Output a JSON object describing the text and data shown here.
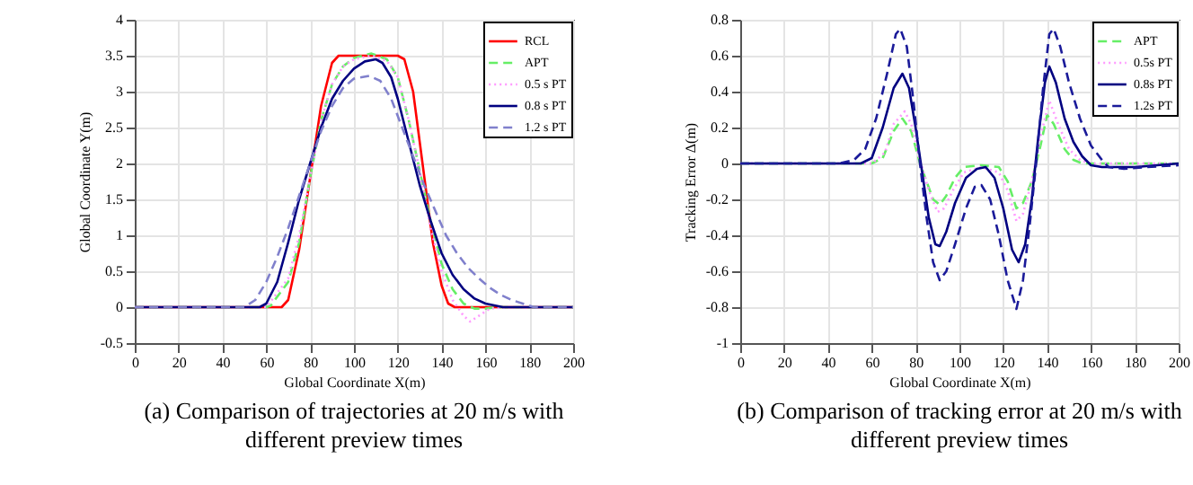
{
  "chart_data": [
    {
      "type": "line",
      "title": "(a) Comparison of trajectories at 20 m/s with different preview times",
      "xlabel": "Global Coordinate X(m)",
      "ylabel": "Global Coordinate Y(m)",
      "xlim": [
        0,
        200
      ],
      "ylim": [
        -0.5,
        4
      ],
      "xticks": [
        0,
        20,
        40,
        60,
        80,
        100,
        120,
        140,
        160,
        180,
        200
      ],
      "yticks": [
        -0.5,
        0,
        0.5,
        1,
        1.5,
        2,
        2.5,
        3,
        3.5,
        4
      ],
      "grid": true,
      "legend": "top right",
      "marker": "none",
      "series": [
        {
          "name": "RCL",
          "color": "#ff0000",
          "line_style": "solid",
          "x": [
            0,
            67,
            70,
            75,
            80,
            85,
            90,
            93,
            120,
            123,
            127,
            130,
            133,
            136,
            140,
            143,
            146,
            200
          ],
          "values": [
            0,
            0,
            0.1,
            0.8,
            1.8,
            2.8,
            3.4,
            3.5,
            3.5,
            3.45,
            3,
            2.3,
            1.6,
            0.9,
            0.3,
            0.05,
            0,
            0
          ]
        },
        {
          "name": "APT",
          "color": "#66ee66",
          "line_style": "dashed",
          "x": [
            0,
            60,
            62,
            70,
            75,
            80,
            85,
            90,
            95,
            100,
            108,
            115,
            120,
            125,
            130,
            135,
            140,
            145,
            150,
            155,
            160,
            165,
            200
          ],
          "values": [
            0,
            0,
            0.02,
            0.35,
            0.9,
            1.8,
            2.6,
            3.1,
            3.35,
            3.47,
            3.53,
            3.45,
            3.2,
            2.6,
            1.9,
            1.2,
            0.6,
            0.25,
            0.05,
            -0.02,
            -0.02,
            0,
            0
          ]
        },
        {
          "name": "0.5 s PT",
          "color": "#ff99ff",
          "line_style": "dotted",
          "x": [
            0,
            60,
            70,
            75,
            80,
            85,
            90,
            95,
            100,
            108,
            115,
            120,
            125,
            130,
            135,
            140,
            145,
            150,
            153,
            157,
            162,
            170,
            200
          ],
          "values": [
            0,
            0,
            0.4,
            1,
            1.8,
            2.6,
            3.1,
            3.35,
            3.45,
            3.5,
            3.43,
            3.2,
            2.6,
            1.9,
            1.1,
            0.5,
            0.1,
            -0.12,
            -0.2,
            -0.12,
            -0.02,
            0,
            0
          ]
        },
        {
          "name": "0.8 s PT",
          "color": "#000080",
          "line_style": "solid",
          "x": [
            0,
            57,
            60,
            65,
            70,
            75,
            80,
            85,
            90,
            95,
            100,
            105,
            110,
            113,
            117,
            120,
            125,
            130,
            135,
            140,
            145,
            150,
            155,
            160,
            168,
            200
          ],
          "values": [
            0,
            0,
            0.05,
            0.35,
            0.9,
            1.5,
            2,
            2.5,
            2.9,
            3.15,
            3.32,
            3.42,
            3.45,
            3.4,
            3.2,
            2.9,
            2.3,
            1.7,
            1.2,
            0.75,
            0.45,
            0.25,
            0.12,
            0.05,
            0,
            0
          ]
        },
        {
          "name": "1.2 s PT",
          "color": "#8080cc",
          "line_style": "dashed",
          "x": [
            0,
            50,
            55,
            60,
            65,
            70,
            75,
            80,
            85,
            90,
            95,
            100,
            107,
            112,
            117,
            122,
            127,
            132,
            137,
            142,
            147,
            152,
            157,
            162,
            167,
            172,
            177,
            182,
            200
          ],
          "values": [
            0,
            0,
            0.1,
            0.35,
            0.7,
            1.1,
            1.55,
            2,
            2.45,
            2.8,
            3.05,
            3.18,
            3.22,
            3.15,
            2.9,
            2.5,
            2.1,
            1.7,
            1.35,
            1,
            0.75,
            0.55,
            0.4,
            0.27,
            0.17,
            0.1,
            0.05,
            0,
            0
          ]
        }
      ]
    },
    {
      "type": "line",
      "title": "(b) Comparison of tracking error at 20 m/s with different preview times",
      "xlabel": "Global Coordinate X(m)",
      "ylabel": "Tracking Error  Δ(m)",
      "xlim": [
        0,
        200
      ],
      "ylim": [
        -1,
        0.8
      ],
      "xticks": [
        0,
        20,
        40,
        60,
        80,
        100,
        120,
        140,
        160,
        180,
        200
      ],
      "yticks": [
        -1,
        -0.8,
        -0.6,
        -0.4,
        -0.2,
        0,
        0.2,
        0.4,
        0.6,
        0.8
      ],
      "grid": true,
      "legend": "top right",
      "marker": "none",
      "series": [
        {
          "name": "APT",
          "color": "#66ee66",
          "line_style": "dashed",
          "x": [
            0,
            60,
            65,
            70,
            74,
            78,
            82,
            85,
            88,
            91,
            94,
            98,
            102,
            110,
            118,
            122,
            126,
            129,
            133,
            137,
            140,
            143,
            148,
            152,
            156,
            200
          ],
          "values": [
            0,
            0,
            0.03,
            0.18,
            0.25,
            0.18,
            0,
            -0.1,
            -0.2,
            -0.23,
            -0.18,
            -0.08,
            -0.02,
            -0.01,
            -0.02,
            -0.1,
            -0.25,
            -0.22,
            -0.1,
            0.1,
            0.27,
            0.22,
            0.08,
            0.02,
            0,
            0
          ]
        },
        {
          "name": "0.5s PT",
          "color": "#ff99ff",
          "line_style": "dotted",
          "x": [
            0,
            60,
            66,
            70,
            75,
            78,
            82,
            86,
            90,
            93,
            97,
            102,
            110,
            118,
            122,
            126,
            129,
            133,
            137,
            141,
            145,
            150,
            155,
            160,
            200
          ],
          "values": [
            0,
            0,
            0.06,
            0.22,
            0.29,
            0.22,
            0.02,
            -0.15,
            -0.27,
            -0.25,
            -0.15,
            -0.05,
            -0.02,
            -0.05,
            -0.15,
            -0.32,
            -0.28,
            -0.1,
            0.15,
            0.35,
            0.22,
            0.08,
            0.02,
            0,
            0
          ]
        },
        {
          "name": "0.8s PT",
          "color": "#000080",
          "line_style": "solid",
          "x": [
            0,
            55,
            60,
            65,
            70,
            74,
            77,
            80,
            83,
            86,
            89,
            91,
            94,
            98,
            103,
            108,
            112,
            116,
            120,
            124,
            127,
            130,
            133,
            136,
            139,
            141,
            144,
            148,
            152,
            156,
            160,
            165,
            180,
            200
          ],
          "values": [
            0,
            0,
            0.03,
            0.2,
            0.42,
            0.5,
            0.42,
            0.2,
            -0.05,
            -0.3,
            -0.45,
            -0.46,
            -0.38,
            -0.22,
            -0.08,
            -0.03,
            -0.02,
            -0.08,
            -0.25,
            -0.48,
            -0.55,
            -0.45,
            -0.2,
            0.15,
            0.45,
            0.54,
            0.45,
            0.25,
            0.12,
            0.04,
            -0.01,
            -0.02,
            -0.02,
            0
          ]
        },
        {
          "name": "1.2s PT",
          "color": "#1a1a99",
          "line_style": "dashed",
          "x": [
            0,
            45,
            52,
            57,
            62,
            67,
            71,
            73,
            76,
            79,
            82,
            85,
            88,
            91,
            94,
            98,
            103,
            107,
            110,
            114,
            118,
            122,
            126,
            129,
            132,
            135,
            138,
            141,
            143,
            146,
            150,
            155,
            160,
            165,
            168,
            175,
            185,
            200
          ],
          "values": [
            0,
            0,
            0.02,
            0.08,
            0.25,
            0.5,
            0.72,
            0.75,
            0.65,
            0.35,
            0,
            -0.3,
            -0.55,
            -0.65,
            -0.6,
            -0.45,
            -0.25,
            -0.13,
            -0.12,
            -0.2,
            -0.4,
            -0.65,
            -0.81,
            -0.65,
            -0.35,
            0,
            0.4,
            0.72,
            0.75,
            0.65,
            0.45,
            0.25,
            0.1,
            0.02,
            -0.02,
            -0.03,
            -0.02,
            -0.01
          ]
        }
      ]
    }
  ]
}
